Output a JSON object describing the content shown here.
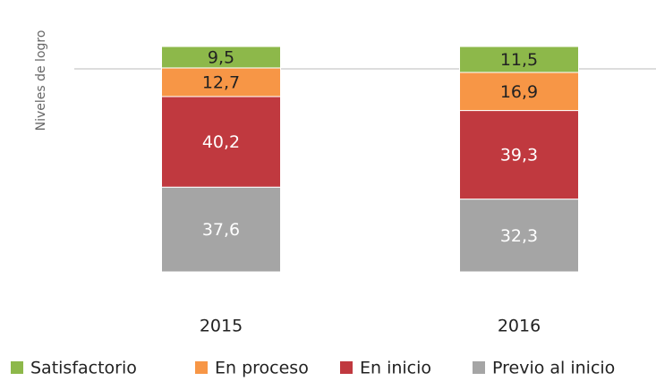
{
  "chart_data": {
    "type": "stacked_bar",
    "ylabel": "Niveles de logro",
    "categories": [
      "2015",
      "2016"
    ],
    "series": [
      {
        "name": "Satisfactorio",
        "color": "#8db84a",
        "values": [
          9.5,
          11.5
        ],
        "value_labels": [
          "9,5",
          "11,5"
        ]
      },
      {
        "name": "En proceso",
        "color": "#f79646",
        "values": [
          12.7,
          16.9
        ],
        "value_labels": [
          "12,7",
          "16,9"
        ]
      },
      {
        "name": "En inicio",
        "color": "#c0393f",
        "values": [
          40.2,
          39.3
        ],
        "value_labels": [
          "40,2",
          "39,3"
        ]
      },
      {
        "name": "Previo al inicio",
        "color": "#a5a5a5",
        "values": [
          37.6,
          32.3
        ],
        "value_labels": [
          "37,6",
          "32,3"
        ]
      }
    ]
  }
}
